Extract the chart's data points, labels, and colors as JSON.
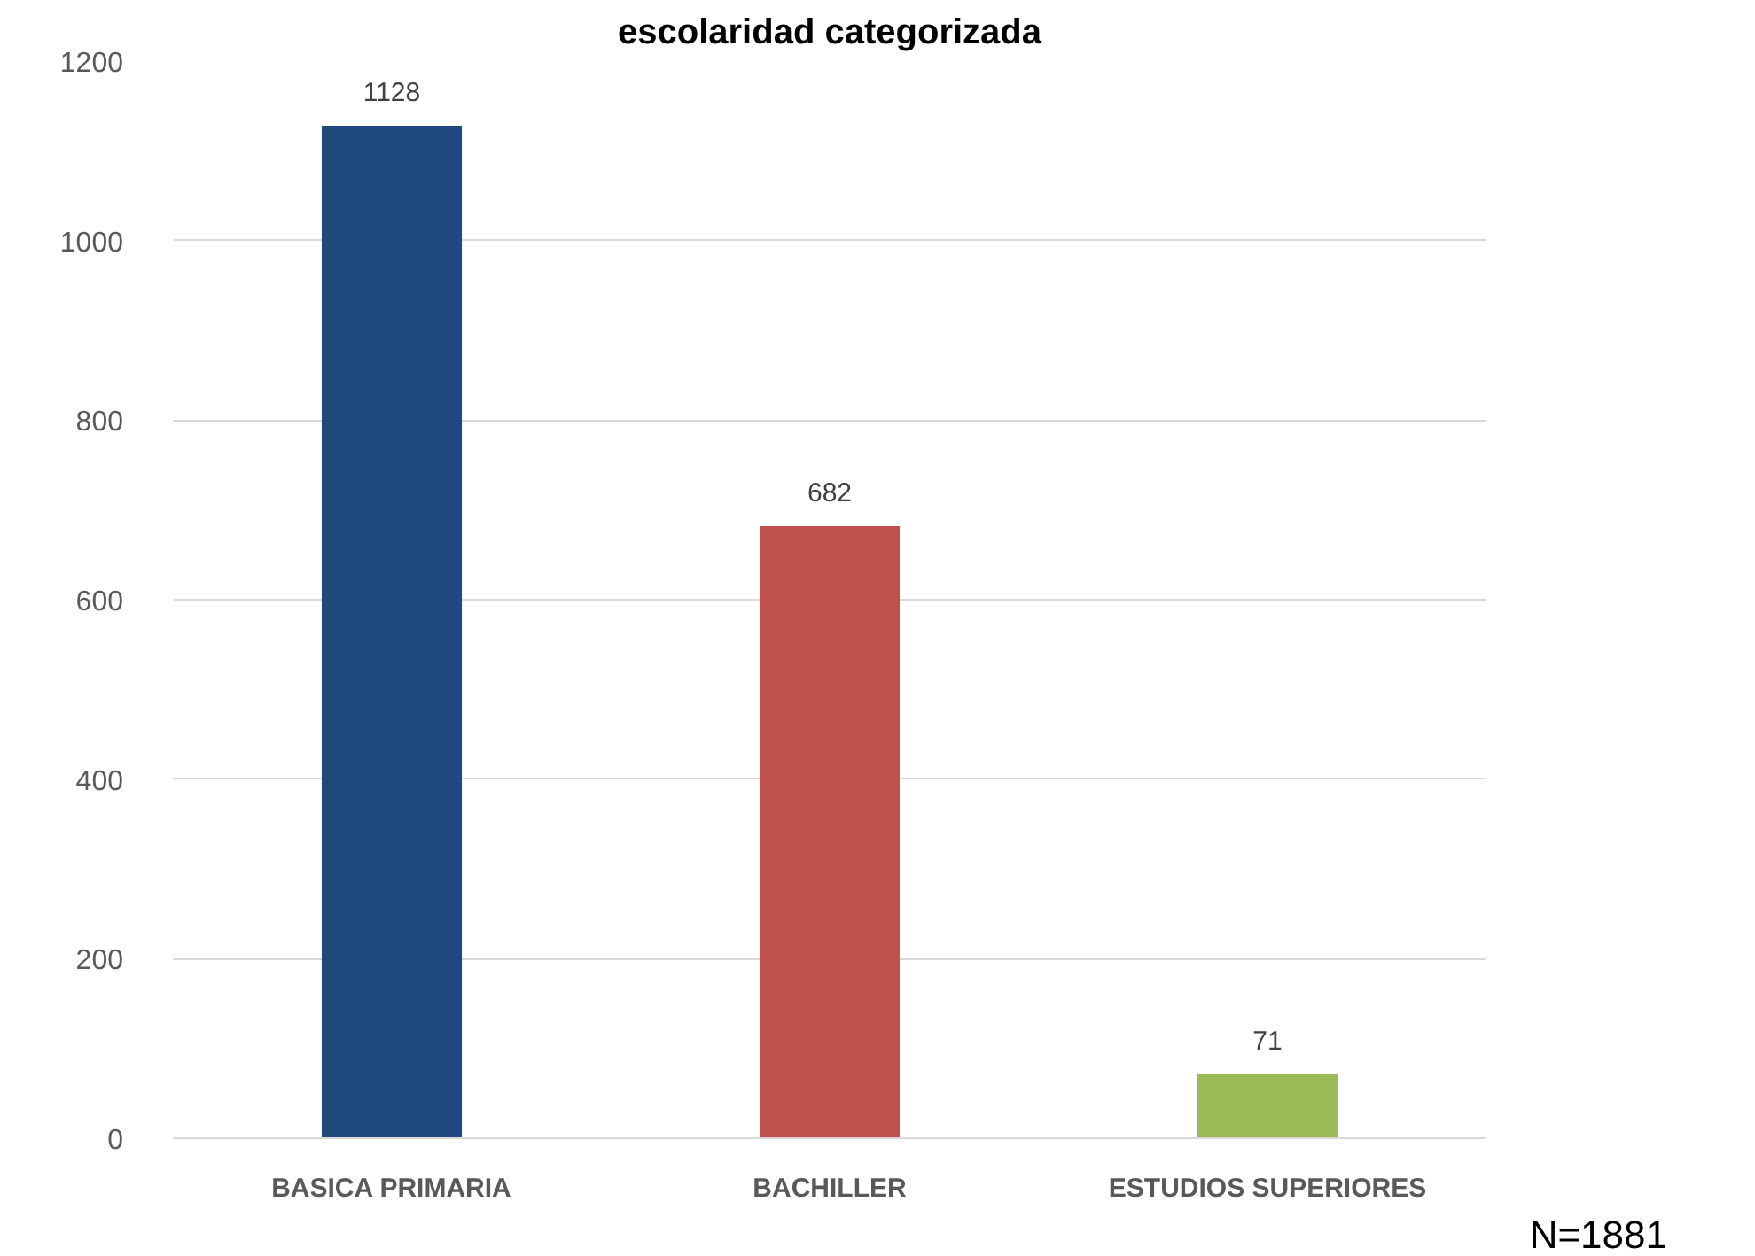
{
  "chart_data": {
    "type": "bar",
    "title": "escolaridad categorizada",
    "categories": [
      "BASICA PRIMARIA",
      "BACHILLER",
      "ESTUDIOS SUPERIORES"
    ],
    "values": [
      1128,
      682,
      71
    ],
    "colors": [
      "#1f497d",
      "#c0504d",
      "#9bbb59"
    ],
    "ylim": [
      0,
      1200
    ],
    "yticks": [
      0,
      200,
      400,
      600,
      800,
      1000,
      1200
    ],
    "grid": "y",
    "data_labels": true,
    "annotations": [
      "N=1881"
    ]
  }
}
